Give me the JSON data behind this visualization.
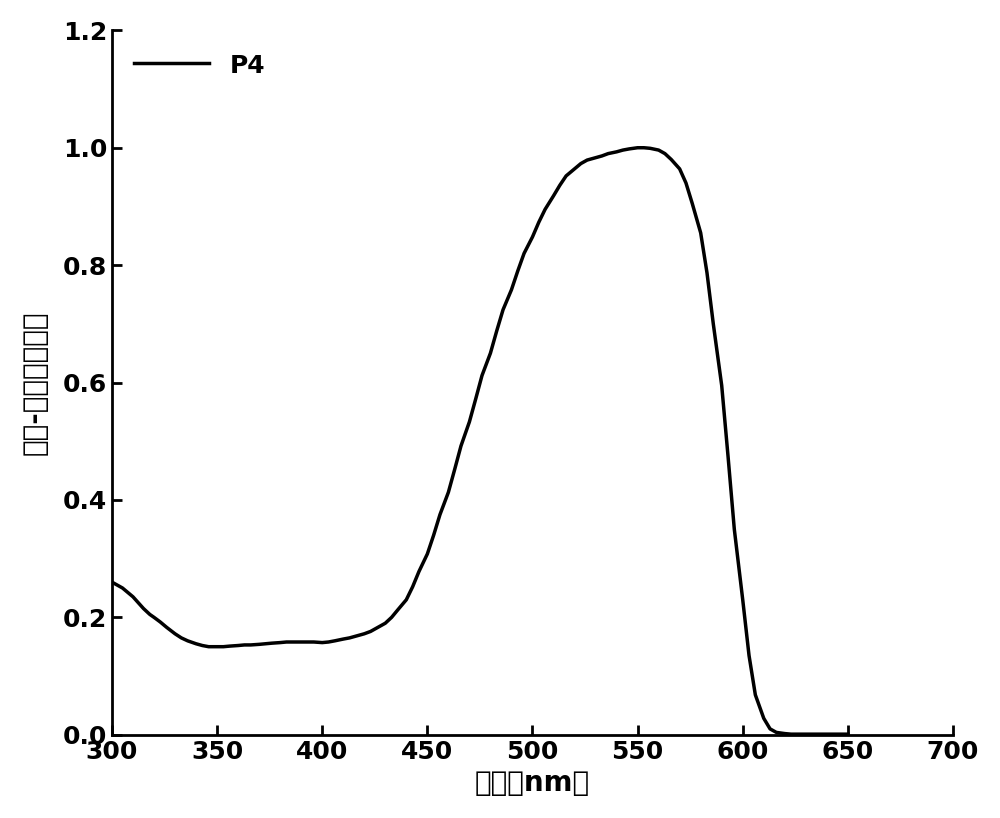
{
  "title": "",
  "xlabel": "波长（nm）",
  "ylabel": "紫外-可见吸收强度",
  "xlim": [
    300,
    700
  ],
  "ylim": [
    0,
    1.2
  ],
  "xticks": [
    300,
    350,
    400,
    450,
    500,
    550,
    600,
    650,
    700
  ],
  "yticks": [
    0,
    0.2,
    0.4,
    0.6,
    0.8,
    1.0,
    1.2
  ],
  "legend_label": "P4",
  "line_color": "#000000",
  "line_width": 2.5,
  "background_color": "#ffffff",
  "x": [
    300,
    305,
    310,
    315,
    318,
    320,
    323,
    326,
    330,
    333,
    336,
    340,
    343,
    346,
    350,
    353,
    356,
    360,
    363,
    366,
    370,
    373,
    376,
    380,
    383,
    386,
    390,
    393,
    396,
    400,
    403,
    406,
    410,
    413,
    416,
    420,
    423,
    426,
    430,
    433,
    436,
    440,
    443,
    446,
    450,
    453,
    456,
    460,
    463,
    466,
    470,
    473,
    476,
    480,
    483,
    486,
    490,
    493,
    496,
    500,
    503,
    506,
    510,
    513,
    516,
    520,
    523,
    526,
    530,
    533,
    536,
    540,
    543,
    546,
    550,
    553,
    556,
    560,
    563,
    566,
    570,
    573,
    576,
    580,
    583,
    586,
    590,
    593,
    596,
    600,
    603,
    606,
    610,
    613,
    616,
    620,
    623,
    626,
    630,
    633,
    636,
    640,
    643,
    646,
    650
  ],
  "y": [
    0.26,
    0.25,
    0.235,
    0.215,
    0.205,
    0.2,
    0.192,
    0.183,
    0.172,
    0.165,
    0.16,
    0.155,
    0.152,
    0.15,
    0.15,
    0.15,
    0.151,
    0.152,
    0.153,
    0.153,
    0.154,
    0.155,
    0.156,
    0.157,
    0.158,
    0.158,
    0.158,
    0.158,
    0.158,
    0.157,
    0.158,
    0.16,
    0.163,
    0.165,
    0.168,
    0.172,
    0.176,
    0.182,
    0.19,
    0.2,
    0.213,
    0.23,
    0.252,
    0.278,
    0.308,
    0.34,
    0.375,
    0.413,
    0.452,
    0.492,
    0.533,
    0.572,
    0.612,
    0.65,
    0.688,
    0.724,
    0.758,
    0.79,
    0.82,
    0.848,
    0.873,
    0.895,
    0.918,
    0.936,
    0.952,
    0.964,
    0.973,
    0.979,
    0.983,
    0.986,
    0.99,
    0.993,
    0.996,
    0.998,
    1.0,
    1.0,
    0.999,
    0.996,
    0.99,
    0.98,
    0.964,
    0.94,
    0.905,
    0.855,
    0.787,
    0.7,
    0.595,
    0.475,
    0.35,
    0.23,
    0.135,
    0.068,
    0.028,
    0.01,
    0.004,
    0.002,
    0.001,
    0.001,
    0.001,
    0.001,
    0.001,
    0.001,
    0.001,
    0.001,
    0.001
  ]
}
